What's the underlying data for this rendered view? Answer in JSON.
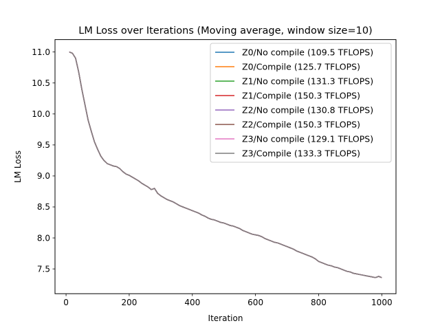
{
  "chart_data": {
    "type": "line",
    "title": "LM Loss over Iterations (Moving average, window size=10)",
    "xlabel": "Iteration",
    "ylabel": "LM Loss",
    "xlim": [
      -35,
      1045
    ],
    "ylim": [
      7.1,
      11.2
    ],
    "xticks": [
      0,
      200,
      400,
      600,
      800,
      1000
    ],
    "yticks": [
      7.5,
      8.0,
      8.5,
      9.0,
      9.5,
      10.0,
      10.5,
      11.0
    ],
    "xtick_labels": [
      "0",
      "200",
      "400",
      "600",
      "800",
      "1000"
    ],
    "ytick_labels": [
      "7.5",
      "8.0",
      "8.5",
      "9.0",
      "9.5",
      "10.0",
      "10.5",
      "11.0"
    ],
    "grid": false,
    "legend_position": "top-right",
    "x": [
      10,
      20,
      30,
      40,
      50,
      60,
      70,
      80,
      90,
      100,
      110,
      120,
      130,
      140,
      150,
      160,
      170,
      180,
      190,
      200,
      210,
      220,
      230,
      240,
      250,
      260,
      270,
      280,
      290,
      300,
      310,
      320,
      330,
      340,
      350,
      360,
      370,
      380,
      390,
      400,
      410,
      420,
      430,
      440,
      450,
      460,
      470,
      480,
      490,
      500,
      510,
      520,
      530,
      540,
      550,
      560,
      570,
      580,
      590,
      600,
      610,
      620,
      630,
      640,
      650,
      660,
      670,
      680,
      690,
      700,
      710,
      720,
      730,
      740,
      750,
      760,
      770,
      780,
      790,
      800,
      810,
      820,
      830,
      840,
      850,
      860,
      870,
      880,
      890,
      900,
      910,
      920,
      930,
      940,
      950,
      960,
      970,
      980,
      990,
      1000
    ],
    "loss": [
      11.0,
      10.98,
      10.9,
      10.68,
      10.4,
      10.15,
      9.9,
      9.72,
      9.55,
      9.43,
      9.32,
      9.25,
      9.2,
      9.18,
      9.16,
      9.15,
      9.12,
      9.07,
      9.03,
      9.01,
      8.98,
      8.95,
      8.92,
      8.88,
      8.85,
      8.82,
      8.78,
      8.8,
      8.72,
      8.68,
      8.65,
      8.62,
      8.6,
      8.58,
      8.55,
      8.52,
      8.5,
      8.48,
      8.46,
      8.44,
      8.42,
      8.4,
      8.37,
      8.35,
      8.32,
      8.3,
      8.29,
      8.27,
      8.25,
      8.24,
      8.22,
      8.2,
      8.19,
      8.17,
      8.15,
      8.12,
      8.1,
      8.08,
      8.06,
      8.05,
      8.04,
      8.02,
      7.99,
      7.97,
      7.95,
      7.93,
      7.92,
      7.9,
      7.88,
      7.86,
      7.84,
      7.82,
      7.79,
      7.77,
      7.75,
      7.73,
      7.71,
      7.69,
      7.66,
      7.62,
      7.6,
      7.58,
      7.56,
      7.55,
      7.53,
      7.52,
      7.5,
      7.48,
      7.46,
      7.45,
      7.43,
      7.42,
      7.41,
      7.4,
      7.39,
      7.38,
      7.37,
      7.36,
      7.38,
      7.36
    ],
    "series": [
      {
        "name": "Z0/No compile (109.5 TFLOPS)",
        "color": "#1f77b4"
      },
      {
        "name": "Z0/Compile (125.7 TFLOPS)",
        "color": "#ff7f0e"
      },
      {
        "name": "Z1/No compile (131.3 TFLOPS)",
        "color": "#2ca02c"
      },
      {
        "name": "Z1/Compile (150.3 TFLOPS)",
        "color": "#d62728"
      },
      {
        "name": "Z2/No compile (130.8 TFLOPS)",
        "color": "#9467bd"
      },
      {
        "name": "Z2/Compile (150.3 TFLOPS)",
        "color": "#8c564b"
      },
      {
        "name": "Z3/No compile (129.1 TFLOPS)",
        "color": "#e377c2"
      },
      {
        "name": "Z3/Compile (133.3 TFLOPS)",
        "color": "#7f7f7f"
      }
    ]
  }
}
